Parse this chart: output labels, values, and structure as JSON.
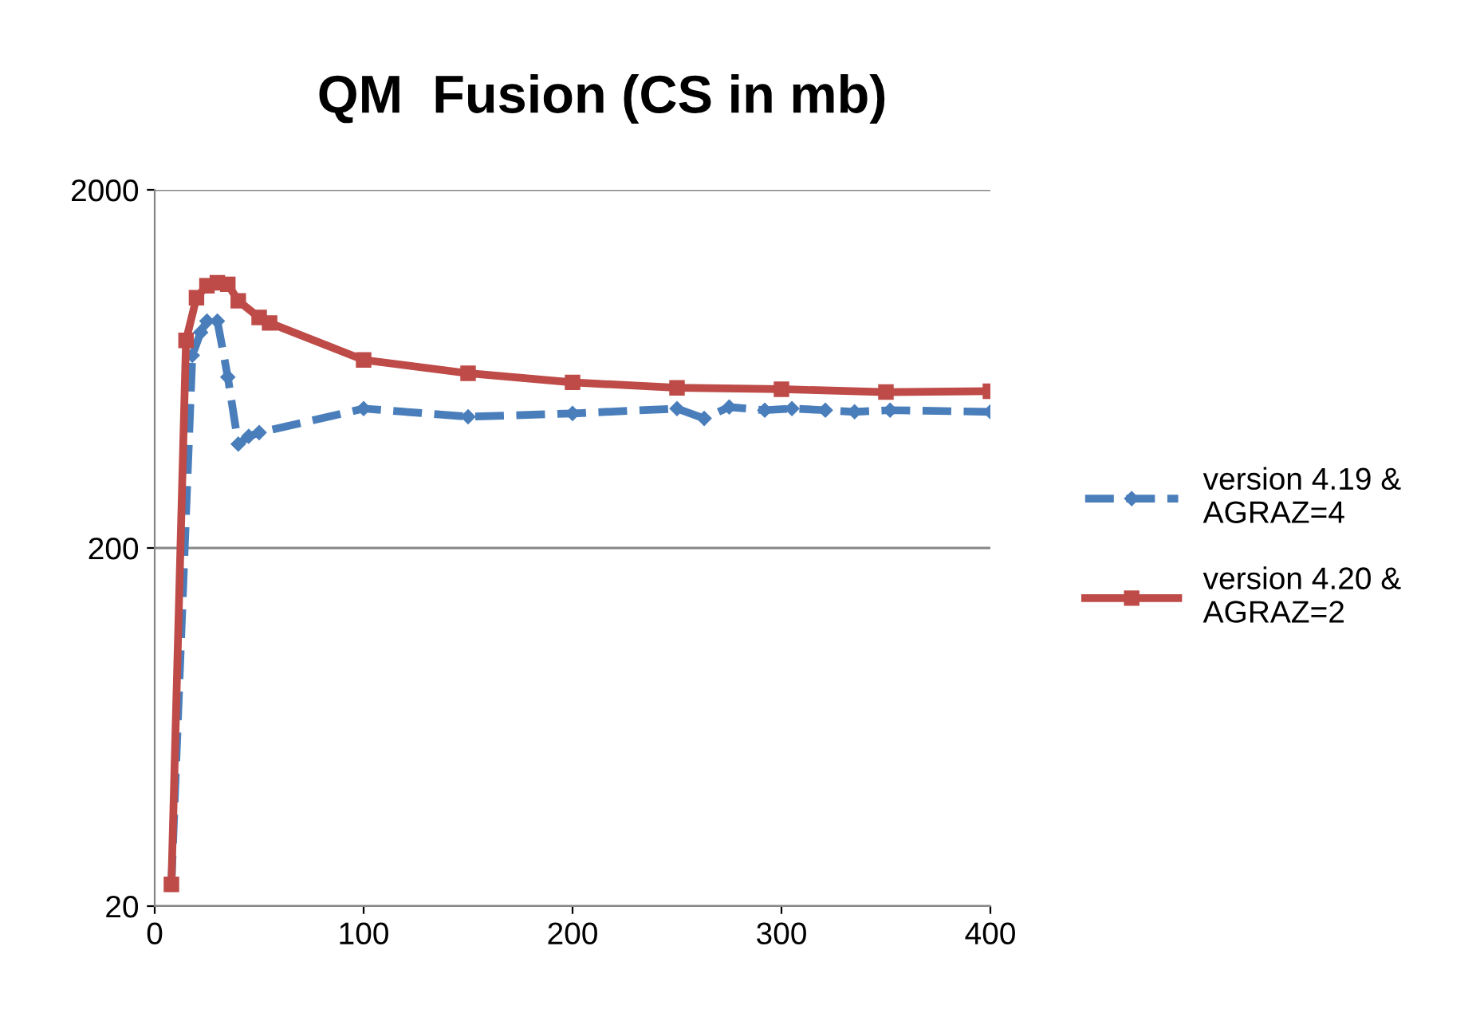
{
  "chart_data": {
    "type": "line",
    "title": "QM  Fusion (CS in mb)",
    "log": "y",
    "grid": "y",
    "legend": "right",
    "xlim": [
      0,
      400
    ],
    "xticks": [
      0,
      100,
      200,
      300,
      400
    ],
    "ylim": [
      20,
      2000
    ],
    "yticks": [
      20,
      200,
      2000
    ],
    "series": [
      {
        "name": "version 4.19 &\nAGRAZ=4",
        "color": "#4a7ebb",
        "marker": "diamond",
        "line_style": "dashed",
        "x": [
          8,
          18,
          22,
          25,
          30,
          35,
          40,
          45,
          50,
          100,
          150,
          200,
          250,
          263,
          275,
          292,
          305,
          321,
          335,
          352,
          400
        ],
        "values": [
          23,
          690,
          800,
          860,
          860,
          600,
          390,
          410,
          420,
          490,
          465,
          475,
          490,
          460,
          495,
          485,
          490,
          485,
          480,
          485,
          480
        ]
      },
      {
        "name": "version 4.20 &\nAGRAZ=2",
        "color": "#be4b48",
        "marker": "square",
        "line_style": "solid",
        "x": [
          8,
          15,
          20,
          25,
          30,
          35,
          40,
          50,
          55,
          100,
          150,
          200,
          250,
          300,
          350,
          400
        ],
        "values": [
          23,
          760,
          1000,
          1080,
          1100,
          1090,
          980,
          880,
          850,
          670,
          615,
          580,
          560,
          555,
          545,
          548
        ]
      }
    ]
  }
}
